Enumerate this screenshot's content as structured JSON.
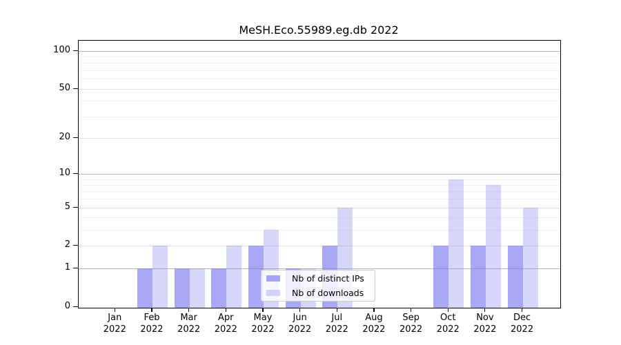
{
  "chart_data": {
    "type": "bar",
    "title": "MeSH.Eco.55989.eg.db 2022",
    "xlabel": "",
    "ylabel": "",
    "categories": [
      "Jan 2022",
      "Feb 2022",
      "Mar 2022",
      "Apr 2022",
      "May 2022",
      "Jun 2022",
      "Jul 2022",
      "Aug 2022",
      "Sep 2022",
      "Oct 2022",
      "Nov 2022",
      "Dec 2022"
    ],
    "series": [
      {
        "name": "Nb of distinct IPs",
        "values": [
          0,
          1,
          1,
          1,
          2,
          1,
          2,
          0,
          0,
          2,
          2,
          2
        ]
      },
      {
        "name": "Nb of downloads",
        "values": [
          0,
          2,
          1,
          2,
          3,
          1,
          5,
          0,
          0,
          9,
          8,
          5
        ]
      }
    ],
    "yscale": "log10(1+v)",
    "yticks": [
      0,
      1,
      2,
      5,
      10,
      20,
      50,
      100
    ],
    "minor_yticks": [
      3,
      4,
      6,
      7,
      8,
      9,
      30,
      40,
      60,
      70,
      80,
      90
    ],
    "ylim": [
      0,
      120
    ],
    "grid": true,
    "legend_position": "lower center"
  },
  "colors": {
    "bar_distinct_ips": "rgba(122,122,243,0.65)",
    "bar_downloads": "rgba(122,122,243,0.30)",
    "grid_decade": "#b6b6b6",
    "grid_major": "#e0e0e0",
    "grid_minor": "#f1f1f1",
    "axis": "#000000",
    "legend_border": "#cccccc",
    "legend_background": "rgba(255,255,255,0.8)",
    "text": "#000000"
  }
}
